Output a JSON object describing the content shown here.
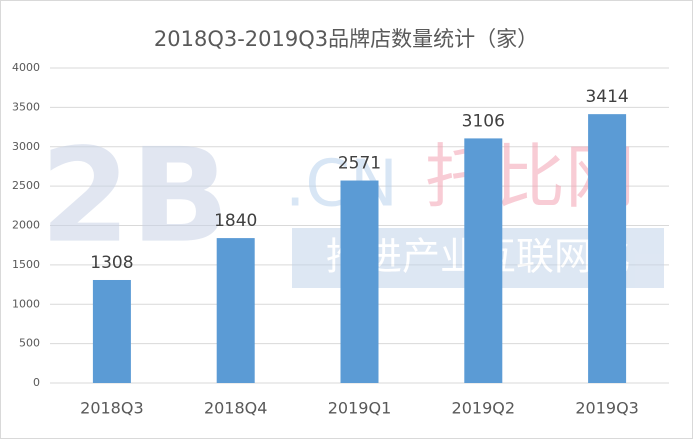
{
  "chart_data": {
    "type": "bar",
    "title": "2018Q3-2019Q3品牌店数量统计（家）",
    "categories": [
      "2018Q3",
      "2018Q4",
      "2019Q1",
      "2019Q2",
      "2019Q3"
    ],
    "values": [
      1308,
      1840,
      2571,
      3106,
      3414
    ],
    "color": "#5b9bd5",
    "ylim": [
      0,
      4000
    ],
    "yticks": [
      0,
      500,
      1000,
      1500,
      2000,
      2500,
      3000,
      3500,
      4000
    ],
    "grid": true
  },
  "watermark": {
    "logo": "2B",
    "domain": ".CN",
    "brand": "托比网",
    "slogan": "推进产业互联网化"
  }
}
